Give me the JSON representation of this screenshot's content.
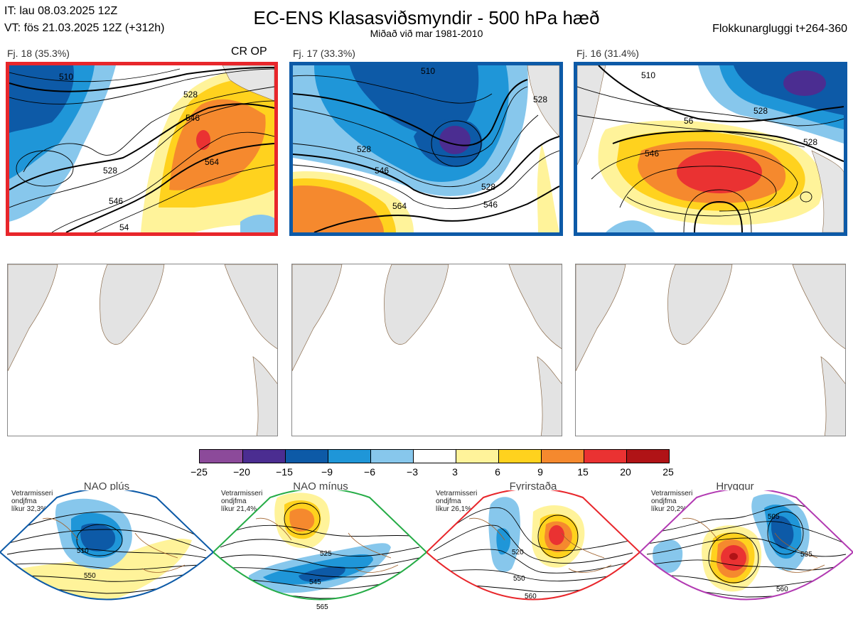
{
  "header": {
    "init_time": "IT: lau 08.03.2025 12Z",
    "valid_time": "VT: fös 21.03.2025 12Z  (+312h)",
    "title": "EC-ENS Klasasviðsmyndir - 500 hPa hæð",
    "subtitle": "Miðað við mar 1981-2010",
    "window": "Flokkunargluggi t+264-360"
  },
  "clusters": [
    {
      "label": "Fj. 18 (35.3%)",
      "tag": "CR OP",
      "border": "#e8262b",
      "contours": [
        "510",
        "528",
        "546",
        "528",
        "564",
        "546",
        "54"
      ]
    },
    {
      "label": "Fj. 17 (33.3%)",
      "tag": "",
      "border": "#0d5aa7",
      "contours": [
        "510",
        "528",
        "546",
        "564",
        "528",
        "546",
        "528"
      ]
    },
    {
      "label": "Fj. 16 (31.4%)",
      "tag": "",
      "border": "#0d5aa7",
      "contours": [
        "510",
        "528",
        "546",
        "528",
        "56"
      ]
    }
  ],
  "colorbar": {
    "labels": [
      "−25",
      "−20",
      "−15",
      "−9",
      "−6",
      "−3",
      "3",
      "6",
      "9",
      "15",
      "20",
      "25"
    ],
    "colors": [
      "#8c4a9a",
      "#4b2d91",
      "#0d5aa7",
      "#1f96d8",
      "#87c7ec",
      "#ffffff",
      "#fff39a",
      "#ffd21e",
      "#f5892e",
      "#ea3232",
      "#b01316"
    ]
  },
  "regimes": [
    {
      "title": "NAO plús",
      "note": [
        "Vetrarmisseri",
        "ondjfma",
        "líkur 32,3%"
      ],
      "color": "#0d5aa7",
      "contours": [
        "510",
        "550"
      ]
    },
    {
      "title": "NAO mínus",
      "note": [
        "Vetrarmisseri",
        "ondjfma",
        "líkur 21,4%"
      ],
      "color": "#25ac46",
      "contours": [
        "525",
        "545",
        "565"
      ]
    },
    {
      "title": "Fyrirstaða",
      "note": [
        "Vetrarmisseri",
        "ondjfma",
        "líkur 26,1%"
      ],
      "color": "#e8262b",
      "contours": [
        "520",
        "550",
        "560"
      ]
    },
    {
      "title": "Hryggur",
      "note": [
        "Vetrarmisseri",
        "ondjfma",
        "líkur 20,2%"
      ],
      "color": "#ee75ee",
      "contours": [
        "505",
        "535",
        "560"
      ]
    }
  ]
}
